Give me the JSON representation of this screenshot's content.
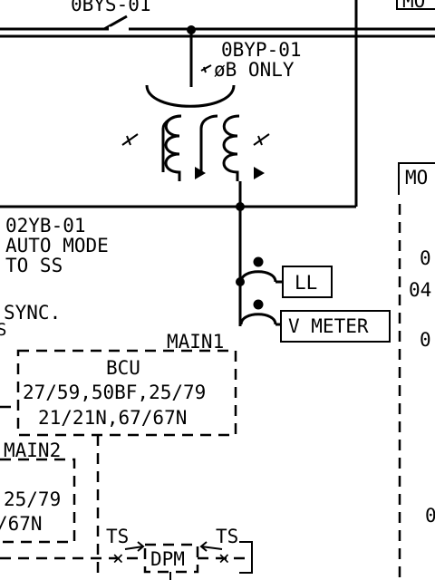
{
  "diagram": {
    "labels": {
      "top_switch": "0BYS-01",
      "top_right_box": "MO",
      "transformer_id": "0BYP-01",
      "transformer_phase": "øB ONLY",
      "switch_id": "02YB-01",
      "auto_mode": "AUTO MODE",
      "to_ss": "TO SS",
      "sync": "SYNC.",
      "sync_sub": "S",
      "ll_meter": "LL",
      "v_meter": "V METER",
      "main1": "MAIN1",
      "bcu_title": "BCU",
      "bcu_line1": "27/59,50BF,25/79",
      "bcu_line2": "21/21N,67/67N",
      "main2": "MAIN2",
      "main2_line1": "25/79",
      "main2_line2": "/67N",
      "ts_left": "TS",
      "ts_right": "TS",
      "dpm": "DPM",
      "right_mo": "MO",
      "right_0a": "0",
      "right_04": "04",
      "right_0b": "0",
      "right_0c": "0"
    }
  }
}
